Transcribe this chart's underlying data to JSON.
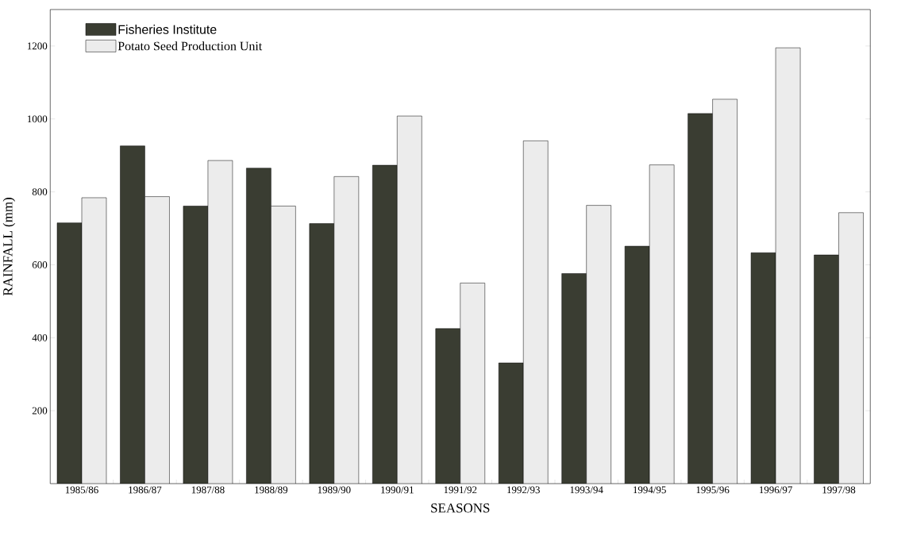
{
  "chart_data": {
    "type": "bar",
    "xlabel": "SEASONS",
    "ylabel": "RAINFALL (mm)",
    "categories": [
      "1985/86",
      "1986/87",
      "1987/88",
      "1988/89",
      "1989/90",
      "1990/91",
      "1991/92",
      "1992/93",
      "1993/94",
      "1994/95",
      "1995/96",
      "1996/97",
      "1997/98"
    ],
    "series": [
      {
        "name": "Fisheries Institute",
        "color": "#3a3d32",
        "values": [
          715,
          926,
          761,
          865,
          713,
          873,
          425,
          331,
          576,
          651,
          1015,
          633,
          627
        ]
      },
      {
        "name": "Potato Seed Production Unit",
        "color": "#ececec",
        "values": [
          784,
          787,
          886,
          761,
          842,
          1008,
          550,
          940,
          763,
          874,
          1054,
          1195,
          743
        ]
      }
    ],
    "ylim": [
      0,
      1300
    ],
    "yticks": [
      200,
      400,
      600,
      800,
      1000,
      1200
    ],
    "legend": "top left"
  }
}
